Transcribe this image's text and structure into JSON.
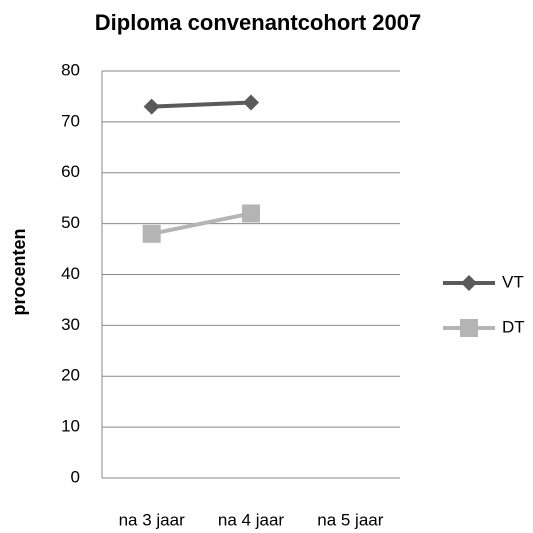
{
  "chart_data": {
    "type": "line",
    "title": "Diploma convenantcohort 2007",
    "y_label": "procenten",
    "categories": [
      "na 3 jaar",
      "na 4 jaar",
      "na 5 jaar"
    ],
    "series": [
      {
        "name": "VT",
        "color": "#5a5a5a",
        "marker": "diamond",
        "values": [
          73,
          73.8,
          null
        ]
      },
      {
        "name": "DT",
        "color": "#b4b4b4",
        "marker": "square",
        "values": [
          48,
          52,
          null
        ]
      }
    ],
    "ylim": [
      0,
      80
    ],
    "yticks": [
      0,
      10,
      20,
      30,
      40,
      50,
      60,
      70,
      80
    ],
    "grid": true,
    "legend": "right"
  }
}
